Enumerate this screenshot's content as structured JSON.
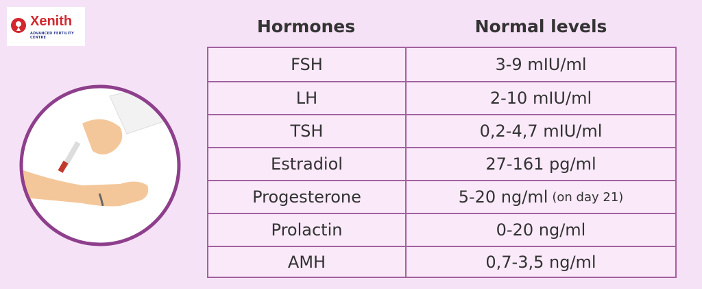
{
  "logo": {
    "name": "Xenith",
    "tagline": "ADVANCED FERTILITY CENTRE"
  },
  "table": {
    "headers": [
      "Hormones",
      "Normal levels"
    ],
    "rows": [
      {
        "hormone": "FSH",
        "level": "3-9 mIU/ml"
      },
      {
        "hormone": "LH",
        "level": "2-10 mIU/ml"
      },
      {
        "hormone": "TSH",
        "level": "0,2-4,7 mIU/ml"
      },
      {
        "hormone": "Estradiol",
        "level": "27-161 pg/ml"
      },
      {
        "hormone": "Progesterone",
        "level": "5-20 ng/ml",
        "note": "(on day 21)"
      },
      {
        "hormone": "Prolactin",
        "level": "0-20 ng/ml"
      },
      {
        "hormone": "AMH",
        "level": "0,7-3,5 ng/ml"
      }
    ]
  }
}
